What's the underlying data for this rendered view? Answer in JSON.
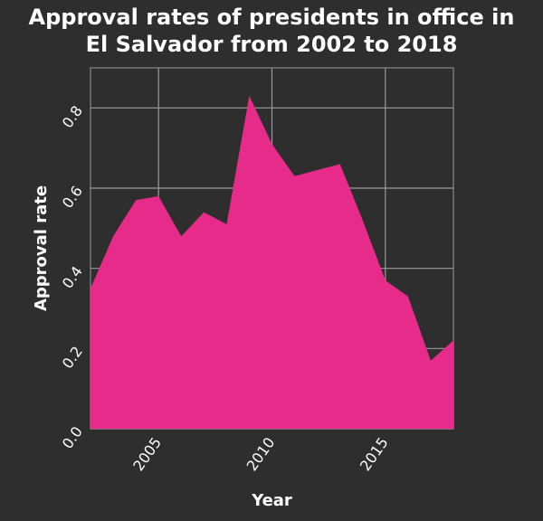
{
  "chart_data": {
    "type": "area",
    "title_lines": [
      "Approval rates of presidents in office in",
      "El Salvador from 2002 to 2018"
    ],
    "xlabel": "Year",
    "ylabel": "Approval rate",
    "xlim": [
      2002,
      2018
    ],
    "ylim": [
      0,
      0.9
    ],
    "x_ticks": [
      2005,
      2010,
      2015
    ],
    "y_ticks": [
      0.0,
      0.2,
      0.4,
      0.6,
      0.8
    ],
    "y_tick_labels": [
      "0.0",
      "0.2",
      "0.4",
      "0.6",
      "0.8"
    ],
    "grid": true,
    "colors": {
      "fill": "#e62b8a",
      "background": "#2e2e2e",
      "grid": "#9a9a9a",
      "text": "#ffffff"
    },
    "series": [
      {
        "x": [
          2002,
          2003,
          2004,
          2005,
          2006,
          2007,
          2008,
          2009,
          2010,
          2011,
          2012,
          2013,
          2014,
          2015,
          2016,
          2017,
          2018
        ],
        "values": [
          0.35,
          0.48,
          0.57,
          0.58,
          0.48,
          0.54,
          0.51,
          0.83,
          0.71,
          0.63,
          0.645,
          0.66,
          0.52,
          0.37,
          0.33,
          0.17,
          0.22
        ]
      }
    ]
  }
}
